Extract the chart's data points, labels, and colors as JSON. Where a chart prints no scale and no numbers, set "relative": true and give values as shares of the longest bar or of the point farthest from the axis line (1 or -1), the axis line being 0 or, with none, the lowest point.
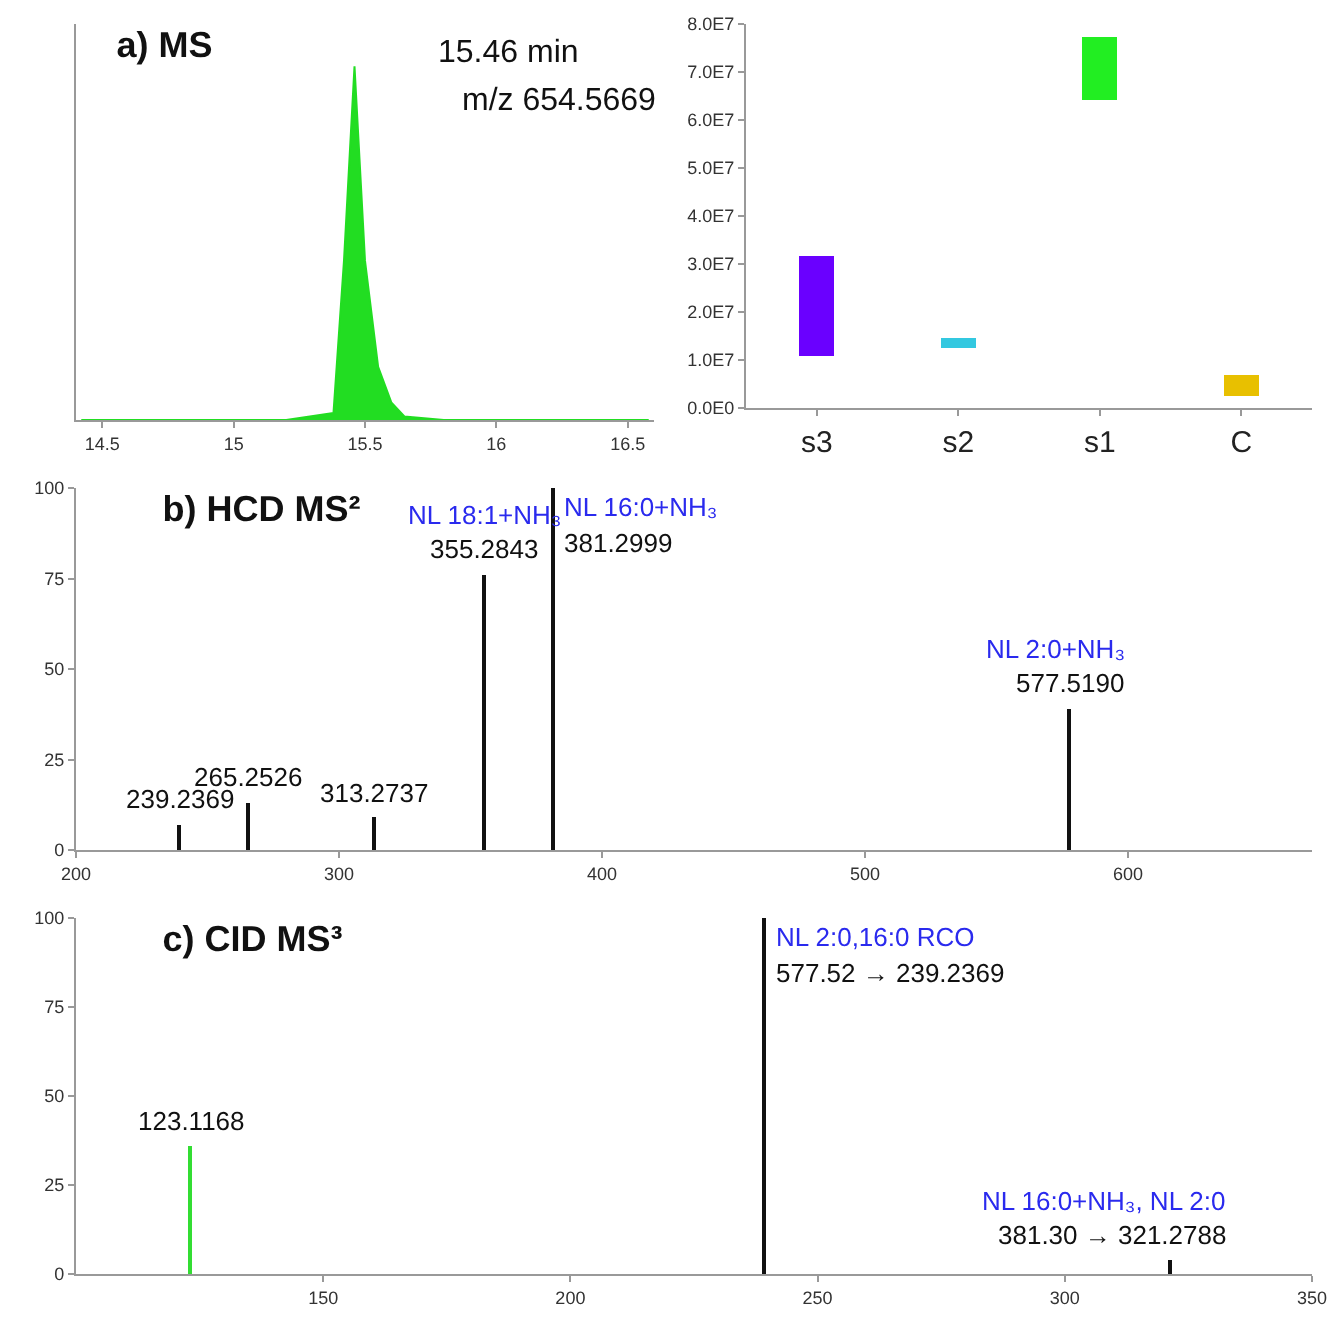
{
  "chart_data": [
    {
      "type": "area",
      "title": "a) MS",
      "relative": true,
      "tick_labels": "x",
      "xlim": [
        14.4,
        16.6
      ],
      "xticks": [
        14.5,
        15,
        15.5,
        16,
        16.5
      ],
      "x": [
        14.42,
        15.2,
        15.38,
        15.42,
        15.46,
        15.5,
        15.55,
        15.6,
        15.65,
        15.8,
        16.58
      ],
      "series": [
        {
          "color": "#22dd22",
          "values": [
            0,
            0,
            0.02,
            0.45,
            1,
            0.45,
            0.15,
            0.05,
            0.01,
            0,
            0
          ]
        }
      ],
      "annotations": [
        "15.46 min",
        "m/z 654.5669"
      ]
    },
    {
      "type": "bar",
      "categories": [
        "s3",
        "s2",
        "s1",
        "C"
      ],
      "values": [
        20800000,
        2200000,
        13200000,
        4500000
      ],
      "base": [
        10900000,
        12400000,
        64100000,
        2400000
      ],
      "colors": [
        "#6a00ff",
        "#33c8e0",
        "#22ee22",
        "#e8c000"
      ],
      "ylim": [
        0,
        80000000
      ],
      "yticks": [
        {
          "value": 0,
          "label": "0.0E0"
        },
        {
          "value": 10000000,
          "label": "1.0E7"
        },
        {
          "value": 20000000,
          "label": "2.0E7"
        },
        {
          "value": 30000000,
          "label": "3.0E7"
        },
        {
          "value": 40000000,
          "label": "4.0E7"
        },
        {
          "value": 50000000,
          "label": "5.0E7"
        },
        {
          "value": 60000000,
          "label": "6.0E7"
        },
        {
          "value": 70000000,
          "label": "7.0E7"
        },
        {
          "value": 80000000,
          "label": "8.0E7"
        }
      ]
    },
    {
      "type": "bar",
      "title": "b) HCD MS²",
      "xlim": [
        200,
        670
      ],
      "xticks": [
        200,
        300,
        400,
        500,
        600
      ],
      "ylim": [
        0,
        100
      ],
      "yticks": [
        0,
        25,
        50,
        75,
        100
      ],
      "x": [
        239.2369,
        265.2526,
        313.2737,
        355.2843,
        381.2999,
        577.519
      ],
      "values": [
        7,
        13,
        9,
        76,
        100,
        39
      ],
      "colors": [
        "#111111",
        "#111111",
        "#111111",
        "#111111",
        "#111111",
        "#111111"
      ],
      "annotations": [
        {
          "text": "239.2369",
          "x": 239.2369,
          "y": 7
        },
        {
          "text": "265.2526",
          "x": 265.2526,
          "y": 13
        },
        {
          "text": "313.2737",
          "x": 313.2737,
          "y": 9
        },
        {
          "text": "NL 18:1+NH₃",
          "x": 355.2843,
          "y": 76
        },
        {
          "text": "355.2843",
          "x": 355.2843,
          "y": 76
        },
        {
          "text": "NL 16:0+NH₃",
          "x": 381.2999,
          "y": 100
        },
        {
          "text": "381.2999",
          "x": 381.2999,
          "y": 100
        },
        {
          "text": "NL 2:0+NH₃",
          "x": 577.519,
          "y": 39
        },
        {
          "text": "577.5190",
          "x": 577.519,
          "y": 39
        }
      ]
    },
    {
      "type": "bar",
      "title": "c) CID MS³",
      "xlim": [
        100,
        350
      ],
      "xticks": [
        150,
        200,
        250,
        300,
        350
      ],
      "ylim": [
        0,
        100
      ],
      "yticks": [
        0,
        25,
        50,
        75,
        100
      ],
      "x": [
        123.1168,
        239.2369,
        321.2788
      ],
      "values": [
        36,
        100,
        4
      ],
      "colors": [
        "#33dd33",
        "#111111",
        "#111111"
      ],
      "annotations": [
        {
          "text": "123.1168",
          "x": 123.1168,
          "y": 36
        },
        {
          "text": "NL 2:0,16:0 RCO",
          "x": 239.2369,
          "y": 100
        },
        {
          "text": "577.52 → 239.2369",
          "x": 239.2369,
          "y": 100
        },
        {
          "text": "NL 16:0+NH₃, NL 2:0",
          "x": 321.2788,
          "y": 4
        },
        {
          "text": "381.30 → 321.2788",
          "x": 321.2788,
          "y": 4
        }
      ]
    }
  ]
}
